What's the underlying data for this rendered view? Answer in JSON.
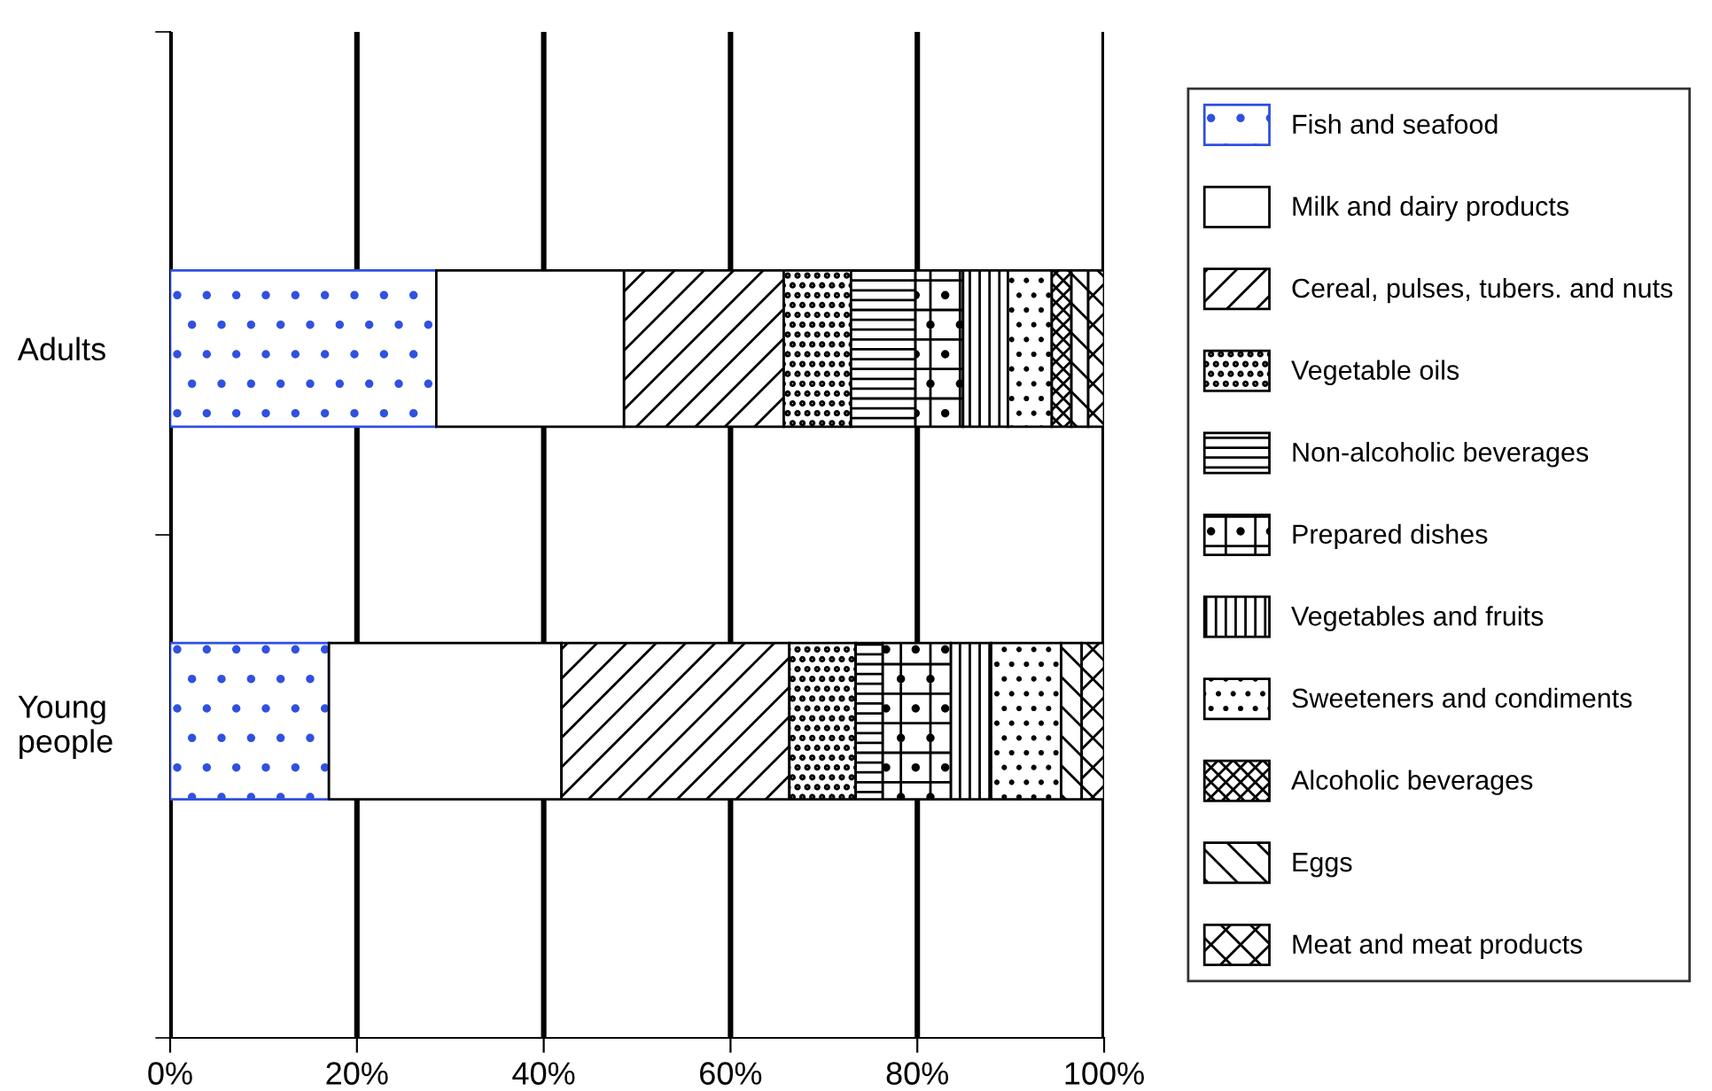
{
  "chart_data": {
    "type": "bar",
    "orientation": "horizontal",
    "stacked": true,
    "categories": [
      "Adults",
      "Young\npeople"
    ],
    "series": [
      {
        "name": "Fish and seafood",
        "color": "#3050e0",
        "values": [
          28.5,
          17.0
        ]
      },
      {
        "name": "Milk and dairy products",
        "color": "#ffffff",
        "values": [
          20.1,
          24.9
        ]
      },
      {
        "name": "Cereal, pulses, tubers. and nuts",
        "color": "#000000",
        "values": [
          17.1,
          24.4
        ]
      },
      {
        "name": "Vegetable oils",
        "color": "#000000",
        "values": [
          7.2,
          7.1
        ]
      },
      {
        "name": "Non-alcoholic beverages",
        "color": "#000000",
        "values": [
          6.9,
          2.9
        ]
      },
      {
        "name": "Prepared dishes",
        "color": "#000000",
        "values": [
          5.1,
          7.3
        ]
      },
      {
        "name": "Vegetables and fruits",
        "color": "#000000",
        "values": [
          4.8,
          4.3
        ]
      },
      {
        "name": "Sweeteners and condiments",
        "color": "#000000",
        "values": [
          4.7,
          7.5
        ]
      },
      {
        "name": "Alcoholic beverages",
        "color": "#000000",
        "values": [
          2.1,
          0
        ]
      },
      {
        "name": "Eggs",
        "color": "#000000",
        "values": [
          1.8,
          2.2
        ]
      },
      {
        "name": "Meat and meat products",
        "color": "#000000",
        "values": [
          1.7,
          2.4
        ]
      }
    ],
    "xlim": [
      0,
      100
    ],
    "xticks": [
      {
        "value": 0,
        "label": "0%"
      },
      {
        "value": 20,
        "label": "20%"
      },
      {
        "value": 40,
        "label": "40%"
      },
      {
        "value": 60,
        "label": "60%"
      },
      {
        "value": 80,
        "label": "80%"
      },
      {
        "value": 100,
        "label": "100%"
      }
    ],
    "grid": "x",
    "legend": "right"
  }
}
